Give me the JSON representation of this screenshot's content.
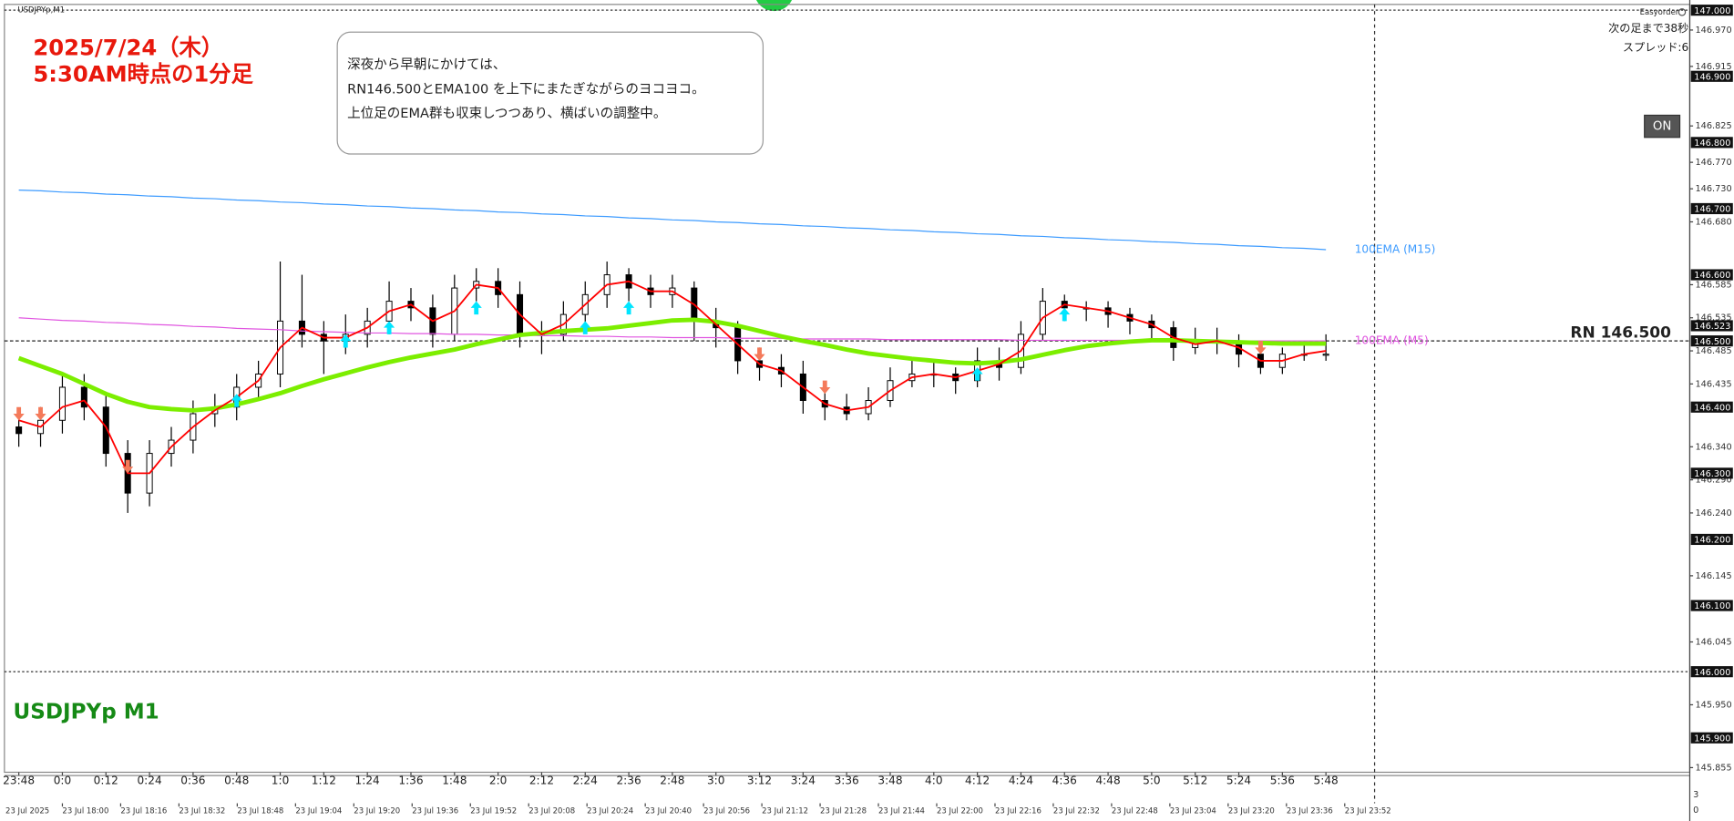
{
  "chart_data": {
    "type": "candlestick",
    "symbol_label": "USDJPYp,M1",
    "title_lines": [
      "2025/7/24（木）",
      "5:30AM時点の1分足"
    ],
    "annotation_lines": [
      "深夜から早朝にかけては、",
      "RN146.500とEMA100 を上下にまたぎながらのヨコヨコ。",
      "上位足のEMA群も収束しつつあり、横ばいの調整中。"
    ],
    "watermark": "USDJPYp M1",
    "panel": {
      "brand": "Easyorder",
      "countdown": "次の足まで38秒",
      "spread": "スプレッド:6",
      "button": "ON"
    },
    "x": [
      "23:48",
      "23:54",
      "0:0",
      "0:6",
      "0:12",
      "0:18",
      "0:24",
      "0:30",
      "0:36",
      "0:42",
      "0:48",
      "0:54",
      "1:0",
      "1:6",
      "1:12",
      "1:18",
      "1:24",
      "1:30",
      "1:36",
      "1:42",
      "1:48",
      "1:54",
      "2:0",
      "2:6",
      "2:12",
      "2:18",
      "2:24",
      "2:30",
      "2:36",
      "2:42",
      "2:48",
      "2:54",
      "3:0",
      "3:6",
      "3:12",
      "3:18",
      "3:24",
      "3:30",
      "3:36",
      "3:42",
      "3:48",
      "3:54",
      "4:0",
      "4:6",
      "4:12",
      "4:18",
      "4:24",
      "4:30",
      "4:36",
      "4:42",
      "4:48",
      "4:54",
      "5:0",
      "5:6",
      "5:12",
      "5:18",
      "5:24",
      "5:30",
      "5:36",
      "5:42",
      "5:48"
    ],
    "open": [
      146.37,
      146.36,
      146.38,
      146.43,
      146.4,
      146.33,
      146.27,
      146.33,
      146.35,
      146.39,
      146.4,
      146.43,
      146.45,
      146.53,
      146.51,
      146.5,
      146.51,
      146.53,
      146.56,
      146.55,
      146.51,
      146.58,
      146.59,
      146.57,
      146.51,
      146.51,
      146.54,
      146.57,
      146.6,
      146.58,
      146.57,
      146.58,
      146.53,
      146.52,
      146.47,
      146.46,
      146.45,
      146.41,
      146.4,
      146.39,
      146.41,
      146.44,
      146.45,
      146.45,
      146.44,
      146.47,
      146.46,
      146.51,
      146.56,
      146.55,
      146.55,
      146.54,
      146.53,
      146.52,
      146.49,
      146.5,
      146.5,
      146.48,
      146.46,
      146.48,
      146.48
    ],
    "high": [
      146.39,
      146.4,
      146.45,
      146.45,
      146.42,
      146.35,
      146.35,
      146.37,
      146.41,
      146.42,
      146.45,
      146.47,
      146.62,
      146.6,
      146.53,
      146.54,
      146.55,
      146.59,
      146.58,
      146.57,
      146.6,
      146.61,
      146.61,
      146.59,
      146.53,
      146.56,
      146.59,
      146.62,
      146.61,
      146.6,
      146.6,
      146.59,
      146.55,
      146.53,
      146.49,
      146.48,
      146.47,
      146.43,
      146.42,
      146.43,
      146.46,
      146.47,
      146.47,
      146.46,
      146.49,
      146.49,
      146.53,
      146.58,
      146.57,
      146.56,
      146.56,
      146.55,
      146.54,
      146.53,
      146.52,
      146.52,
      146.51,
      146.49,
      146.49,
      146.5,
      146.51
    ],
    "low": [
      146.34,
      146.34,
      146.36,
      146.38,
      146.31,
      146.24,
      146.25,
      146.31,
      146.33,
      146.37,
      146.38,
      146.41,
      146.43,
      146.49,
      146.45,
      146.48,
      146.49,
      146.51,
      146.53,
      146.49,
      146.5,
      146.56,
      146.55,
      146.49,
      146.48,
      146.5,
      146.52,
      146.55,
      146.56,
      146.55,
      146.55,
      146.5,
      146.49,
      146.45,
      146.44,
      146.43,
      146.39,
      146.38,
      146.38,
      146.38,
      146.4,
      146.43,
      146.43,
      146.42,
      146.43,
      146.44,
      146.45,
      146.5,
      146.53,
      146.53,
      146.52,
      146.51,
      146.5,
      146.47,
      146.48,
      146.48,
      146.46,
      146.45,
      146.45,
      146.47,
      146.47
    ],
    "close": [
      146.36,
      146.38,
      146.43,
      146.4,
      146.33,
      146.27,
      146.33,
      146.35,
      146.39,
      146.4,
      146.43,
      146.45,
      146.53,
      146.51,
      146.5,
      146.51,
      146.53,
      146.56,
      146.55,
      146.51,
      146.58,
      146.59,
      146.57,
      146.51,
      146.51,
      146.54,
      146.57,
      146.6,
      146.58,
      146.57,
      146.58,
      146.53,
      146.52,
      146.47,
      146.46,
      146.45,
      146.41,
      146.4,
      146.39,
      146.41,
      146.44,
      146.45,
      146.45,
      146.44,
      146.47,
      146.46,
      146.51,
      146.56,
      146.55,
      146.55,
      146.54,
      146.53,
      146.52,
      146.49,
      146.5,
      146.5,
      146.48,
      146.46,
      146.48,
      146.48,
      146.48
    ],
    "up_color": "#ffffff",
    "down_color": "#000000",
    "wick_color": "#000000",
    "series": [
      {
        "name": "100EMA (M15)",
        "color": "#3d9bff",
        "values": [
          146.728,
          146.727,
          146.725,
          146.724,
          146.722,
          146.721,
          146.719,
          146.718,
          146.716,
          146.715,
          146.713,
          146.712,
          146.71,
          146.709,
          146.707,
          146.706,
          146.704,
          146.703,
          146.701,
          146.7,
          146.698,
          146.697,
          146.695,
          146.694,
          146.692,
          146.691,
          146.689,
          146.688,
          146.686,
          146.685,
          146.683,
          146.682,
          146.68,
          146.679,
          146.677,
          146.676,
          146.674,
          146.673,
          146.671,
          146.67,
          146.668,
          146.667,
          146.665,
          146.664,
          146.662,
          146.661,
          146.659,
          146.658,
          146.656,
          146.655,
          146.653,
          146.652,
          146.65,
          146.649,
          146.647,
          146.646,
          146.644,
          146.643,
          146.641,
          146.64,
          146.638
        ]
      },
      {
        "name": "100EMA (M5)",
        "color": "#e055e0",
        "values": [
          146.535,
          146.533,
          146.531,
          146.53,
          146.528,
          146.527,
          146.525,
          146.524,
          146.522,
          146.521,
          146.519,
          146.518,
          146.517,
          146.515,
          146.514,
          146.513,
          146.512,
          146.512,
          146.511,
          146.511,
          146.51,
          146.51,
          146.509,
          146.509,
          146.508,
          146.508,
          146.507,
          146.507,
          146.506,
          146.506,
          146.505,
          146.505,
          146.505,
          146.504,
          146.504,
          146.504,
          146.503,
          146.503,
          146.503,
          146.503,
          146.502,
          146.502,
          146.502,
          146.502,
          146.502,
          146.502,
          146.501,
          146.501,
          146.501,
          146.501,
          146.501,
          146.501,
          146.5,
          146.5,
          146.5,
          146.5,
          146.5,
          146.5,
          146.5,
          146.5,
          146.5
        ]
      },
      {
        "color": "#7cee00",
        "values": [
          146.474,
          146.462,
          146.45,
          146.435,
          146.42,
          146.408,
          146.4,
          146.397,
          146.395,
          146.398,
          146.404,
          146.412,
          146.421,
          146.432,
          146.442,
          146.451,
          146.46,
          146.468,
          146.475,
          146.481,
          146.487,
          146.495,
          146.502,
          146.509,
          146.512,
          146.515,
          146.517,
          146.519,
          146.523,
          146.527,
          146.531,
          146.532,
          146.529,
          146.523,
          146.515,
          146.507,
          146.5,
          146.494,
          146.487,
          146.481,
          146.477,
          146.473,
          146.47,
          146.467,
          146.466,
          146.468,
          146.472,
          146.479,
          146.486,
          146.492,
          146.496,
          146.499,
          146.501,
          146.501,
          146.5,
          146.499,
          146.498,
          146.497,
          146.496,
          146.496,
          146.496
        ]
      },
      {
        "color": "#ff0000",
        "values": [
          146.38,
          146.37,
          146.4,
          146.41,
          146.37,
          146.3,
          146.3,
          146.34,
          146.37,
          146.395,
          146.415,
          146.44,
          146.49,
          146.52,
          146.505,
          146.505,
          146.52,
          146.545,
          146.555,
          146.53,
          146.545,
          146.585,
          146.58,
          146.54,
          146.51,
          146.525,
          146.555,
          146.585,
          146.59,
          146.575,
          146.575,
          146.555,
          146.525,
          146.495,
          146.465,
          146.455,
          146.43,
          146.405,
          146.395,
          146.4,
          146.425,
          146.445,
          146.45,
          146.445,
          146.455,
          146.465,
          146.485,
          146.535,
          146.555,
          146.55,
          146.545,
          146.535,
          146.525,
          146.505,
          146.495,
          146.5,
          146.49,
          146.47,
          146.47,
          146.48,
          146.485
        ]
      }
    ],
    "buy_signals": {
      "color": "#00e5ff",
      "x": [
        "0:48",
        "1:18",
        "1:30",
        "1:54",
        "2:24",
        "2:36",
        "4:12",
        "4:36"
      ],
      "values": [
        146.41,
        146.5,
        146.52,
        146.55,
        146.52,
        146.55,
        146.45,
        146.54
      ]
    },
    "sell_signals": {
      "color": "#f47a5a",
      "x": [
        "23:48",
        "23:54",
        "0:18",
        "3:12",
        "3:30",
        "5:30"
      ],
      "values": [
        146.39,
        146.39,
        146.31,
        146.48,
        146.43,
        146.49
      ]
    },
    "hlines": [
      {
        "label": "RN 146.500",
        "value": 146.5
      }
    ],
    "dotted_levels": [
      147,
      146
    ],
    "ylim": [
      145.848,
      147.007
    ],
    "yticks": [
      {
        "value": 146.97,
        "label": "146.970"
      },
      {
        "value": 146.915,
        "label": "146.915"
      },
      {
        "value": 146.825,
        "label": "146.825"
      },
      {
        "value": 146.77,
        "label": "146.770"
      },
      {
        "value": 146.73,
        "label": "146.730"
      },
      {
        "value": 146.68,
        "label": "146.680"
      },
      {
        "value": 146.585,
        "label": "146.585"
      },
      {
        "value": 146.535,
        "label": "146.535"
      },
      {
        "value": 146.485,
        "label": "146.485"
      },
      {
        "value": 146.435,
        "label": "146.435"
      },
      {
        "value": 146.34,
        "label": "146.340"
      },
      {
        "value": 146.29,
        "label": "146.290"
      },
      {
        "value": 146.24,
        "label": "146.240"
      },
      {
        "value": 146.145,
        "label": "146.145"
      },
      {
        "value": 146.045,
        "label": "146.045"
      },
      {
        "value": 145.95,
        "label": "145.950"
      },
      {
        "value": 145.855,
        "label": "145.855"
      }
    ],
    "price_levels": [
      {
        "value": 147,
        "label": "147.000"
      },
      {
        "value": 146.9,
        "label": "146.900"
      },
      {
        "value": 146.8,
        "label": "146.800"
      },
      {
        "value": 146.7,
        "label": "146.700"
      },
      {
        "value": 146.6,
        "label": "146.600"
      },
      {
        "value": 146.523,
        "label": "146.523"
      },
      {
        "value": 146.5,
        "label": "146.500"
      },
      {
        "value": 146.4,
        "label": "146.400"
      },
      {
        "value": 146.3,
        "label": "146.300"
      },
      {
        "value": 146.2,
        "label": "146.200"
      },
      {
        "value": 146.1,
        "label": "146.100"
      },
      {
        "value": 146,
        "label": "146.000"
      },
      {
        "value": 145.9,
        "label": "145.900"
      }
    ],
    "xticks": [
      "23:48",
      "0:0",
      "0:12",
      "0:24",
      "0:36",
      "0:48",
      "1:0",
      "1:12",
      "1:24",
      "1:36",
      "1:48",
      "2:0",
      "2:12",
      "2:24",
      "2:36",
      "2:48",
      "3:0",
      "3:12",
      "3:24",
      "3:36",
      "3:48",
      "4:0",
      "4:12",
      "4:24",
      "4:36",
      "4:48",
      "5:0",
      "5:12",
      "5:24",
      "5:36",
      "5:48"
    ],
    "x2ticks": [
      "23 Jul 2025",
      "23 Jul 18:00",
      "23 Jul 18:16",
      "23 Jul 18:32",
      "23 Jul 18:48",
      "23 Jul 19:04",
      "23 Jul 19:20",
      "23 Jul 19:36",
      "23 Jul 19:52",
      "23 Jul 20:08",
      "23 Jul 20:24",
      "23 Jul 20:40",
      "23 Jul 20:56",
      "23 Jul 21:12",
      "23 Jul 21:28",
      "23 Jul 21:44",
      "23 Jul 22:00",
      "23 Jul 22:16",
      "23 Jul 22:32",
      "23 Jul 22:48",
      "23 Jul 23:04",
      "23 Jul 23:20",
      "23 Jul 23:36",
      "23 Jul 23:52"
    ],
    "subwindow_ticks": [
      3,
      0
    ]
  }
}
